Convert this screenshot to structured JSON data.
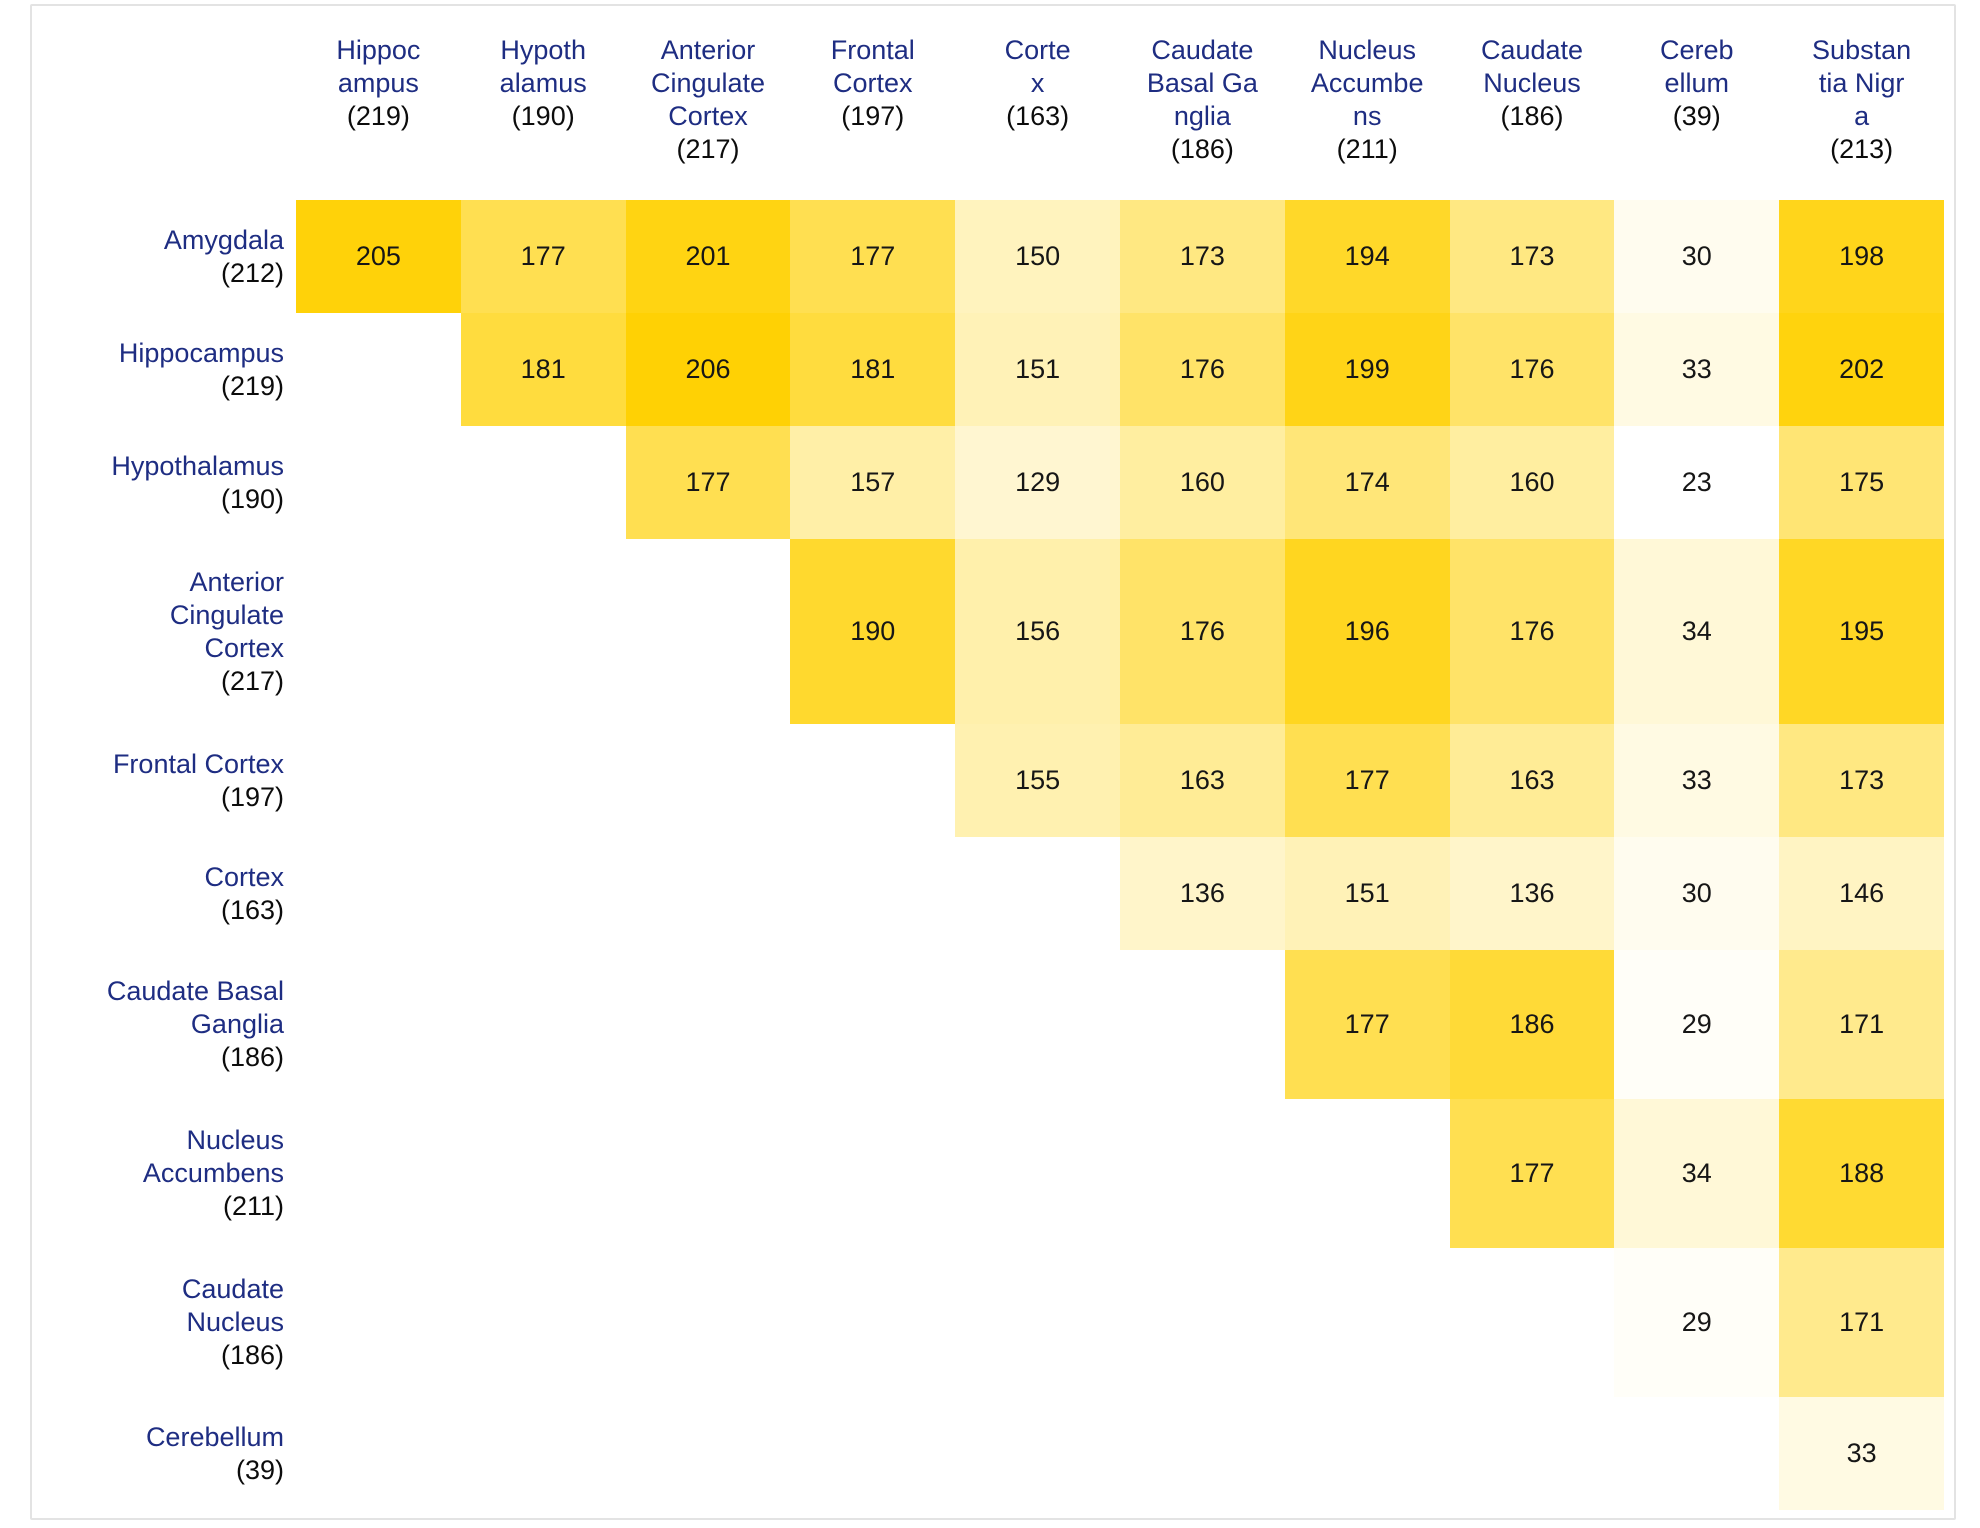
{
  "colors": {
    "label": "#1e2d82",
    "count_text": "#0c0c0c",
    "cell_text": "#161616",
    "frame_border": "#e3e3e3",
    "heat_min": "#ffffff",
    "heat_max": "#ffd104",
    "background": "#ffffff"
  },
  "chart_data": {
    "type": "heatmap",
    "title": "",
    "legend": "none",
    "grid": "off",
    "shape": "upper-triangular pairwise overlap matrix",
    "color_scale": {
      "min_color": "#ffffff",
      "max_color": "#ffd104",
      "mapping": "rank-of-value, white (low) to gold (high)"
    },
    "columns": [
      {
        "name_lines": [
          "Hippoc",
          "ampus"
        ],
        "count": "(219)"
      },
      {
        "name_lines": [
          "Hypoth",
          "alamus"
        ],
        "count": "(190)"
      },
      {
        "name_lines": [
          "Anterior",
          "Cingulate",
          "Cortex"
        ],
        "count": "(217)"
      },
      {
        "name_lines": [
          "Frontal",
          "Cortex"
        ],
        "count": "(197)"
      },
      {
        "name_lines": [
          "Corte",
          "x"
        ],
        "count": "(163)"
      },
      {
        "name_lines": [
          "Caudate",
          "Basal Ga",
          "nglia"
        ],
        "count": "(186)"
      },
      {
        "name_lines": [
          "Nucleus",
          "Accumbe",
          "ns"
        ],
        "count": "(211)"
      },
      {
        "name_lines": [
          "Caudate",
          "Nucleus"
        ],
        "count": "(186)"
      },
      {
        "name_lines": [
          "Cereb",
          "ellum"
        ],
        "count": "(39)"
      },
      {
        "name_lines": [
          "Substan",
          "tia Nigr",
          "a"
        ],
        "count": "(213)"
      }
    ],
    "rows": [
      {
        "name_lines": [
          "Amygdala"
        ],
        "count": "(212)"
      },
      {
        "name_lines": [
          "Hippocampus"
        ],
        "count": "(219)"
      },
      {
        "name_lines": [
          "Hypothalamus"
        ],
        "count": "(190)"
      },
      {
        "name_lines": [
          "Anterior",
          "Cingulate",
          "Cortex"
        ],
        "count": "(217)"
      },
      {
        "name_lines": [
          "Frontal Cortex"
        ],
        "count": "(197)"
      },
      {
        "name_lines": [
          "Cortex"
        ],
        "count": "(163)"
      },
      {
        "name_lines": [
          "Caudate Basal",
          "Ganglia"
        ],
        "count": "(186)"
      },
      {
        "name_lines": [
          "Nucleus",
          "Accumbens"
        ],
        "count": "(211)"
      },
      {
        "name_lines": [
          "Caudate",
          "Nucleus"
        ],
        "count": "(186)"
      },
      {
        "name_lines": [
          "Cerebellum"
        ],
        "count": "(39)"
      }
    ],
    "values": [
      [
        205,
        177,
        201,
        177,
        150,
        173,
        194,
        173,
        30,
        198
      ],
      [
        null,
        181,
        206,
        181,
        151,
        176,
        199,
        176,
        33,
        202
      ],
      [
        null,
        null,
        177,
        157,
        129,
        160,
        174,
        160,
        23,
        175
      ],
      [
        null,
        null,
        null,
        190,
        156,
        176,
        196,
        176,
        34,
        195
      ],
      [
        null,
        null,
        null,
        null,
        155,
        163,
        177,
        163,
        33,
        173
      ],
      [
        null,
        null,
        null,
        null,
        null,
        136,
        151,
        136,
        30,
        146
      ],
      [
        null,
        null,
        null,
        null,
        null,
        null,
        177,
        186,
        29,
        171
      ],
      [
        null,
        null,
        null,
        null,
        null,
        null,
        null,
        177,
        34,
        188
      ],
      [
        null,
        null,
        null,
        null,
        null,
        null,
        null,
        null,
        29,
        171
      ],
      [
        null,
        null,
        null,
        null,
        null,
        null,
        null,
        null,
        null,
        33
      ]
    ]
  }
}
